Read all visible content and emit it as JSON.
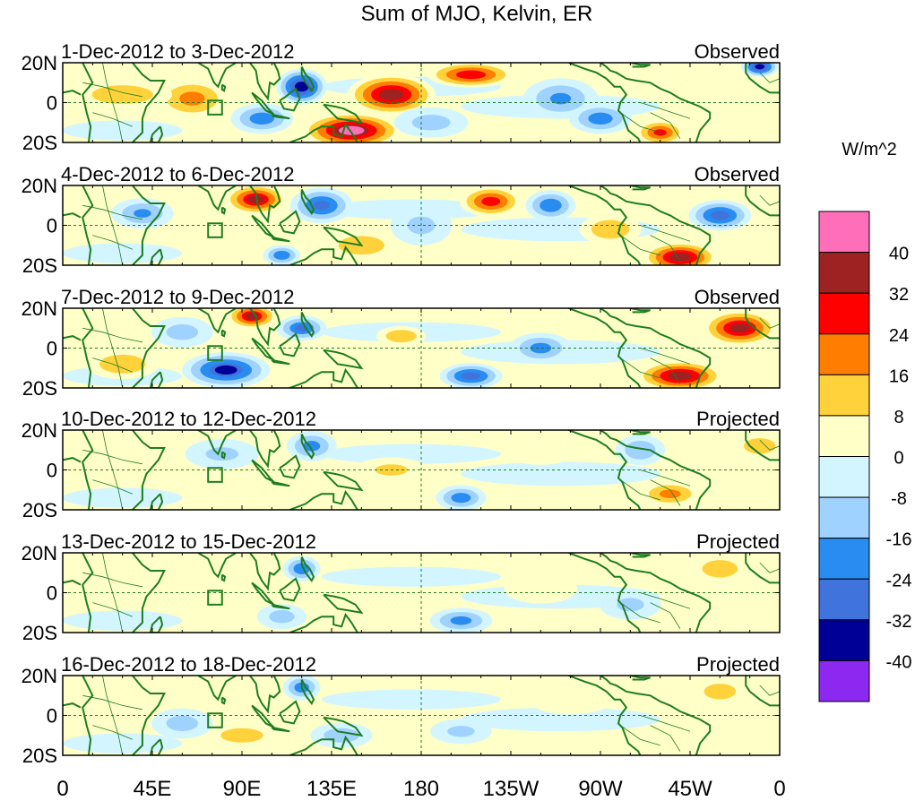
{
  "chart_data": {
    "type": "heatmap",
    "title": "Sum of MJO, Kelvin, ER",
    "units": "W/m^2",
    "x_ticks": [
      "0",
      "45E",
      "90E",
      "135E",
      "180",
      "135W",
      "90W",
      "45W",
      "0"
    ],
    "y_ticks": [
      "20N",
      "0",
      "20S"
    ],
    "xlim": [
      0,
      360
    ],
    "ylim": [
      -20,
      20
    ],
    "colorbar": {
      "labels": [
        "40",
        "32",
        "24",
        "16",
        "8",
        "0",
        "-8",
        "-16",
        "-24",
        "-32",
        "-40"
      ],
      "colors": [
        "#ff6eb9",
        "#9e2222",
        "#ff0000",
        "#ff7d00",
        "#ffd23c",
        "#ffffc8",
        "#d2f5ff",
        "#a0d2ff",
        "#288cf0",
        "#4173dc",
        "#000096",
        "#8c28f0"
      ]
    },
    "panels": [
      {
        "period": "1-Dec-2012 to 3-Dec-2012",
        "status": "Observed",
        "blobs": [
          {
            "lon": 165,
            "lat": 4,
            "rlon": 14,
            "rlat": 8,
            "v": 38
          },
          {
            "lon": 145,
            "lat": -14,
            "rlon": 16,
            "rlat": 7,
            "v": 42
          },
          {
            "lon": 120,
            "lat": 8,
            "rlon": 8,
            "rlat": 7,
            "v": -38
          },
          {
            "lon": 205,
            "lat": 14,
            "rlon": 14,
            "rlat": 5,
            "v": 30
          },
          {
            "lon": 100,
            "lat": -8,
            "rlon": 10,
            "rlat": 6,
            "v": -20
          },
          {
            "lon": 65,
            "lat": 2,
            "rlon": 12,
            "rlat": 8,
            "v": 18
          },
          {
            "lon": 30,
            "lat": 4,
            "rlon": 16,
            "rlat": 6,
            "v": 14
          },
          {
            "lon": 250,
            "lat": 2,
            "rlon": 12,
            "rlat": 8,
            "v": -16
          },
          {
            "lon": 300,
            "lat": -15,
            "rlon": 8,
            "rlat": 5,
            "v": 26
          },
          {
            "lon": 350,
            "lat": 18,
            "rlon": 6,
            "rlat": 4,
            "v": -36
          },
          {
            "lon": 270,
            "lat": -8,
            "rlon": 10,
            "rlat": 6,
            "v": -20
          },
          {
            "lon": 185,
            "lat": -10,
            "rlon": 12,
            "rlat": 6,
            "v": -10
          }
        ]
      },
      {
        "period": "4-Dec-2012 to 6-Dec-2012",
        "status": "Observed",
        "blobs": [
          {
            "lon": 97,
            "lat": 13,
            "rlon": 10,
            "rlat": 6,
            "v": 34
          },
          {
            "lon": 130,
            "lat": 10,
            "rlon": 10,
            "rlat": 7,
            "v": -26
          },
          {
            "lon": 110,
            "lat": -15,
            "rlon": 6,
            "rlat": 4,
            "v": -22
          },
          {
            "lon": 215,
            "lat": 12,
            "rlon": 10,
            "rlat": 6,
            "v": 28
          },
          {
            "lon": 245,
            "lat": 10,
            "rlon": 8,
            "rlat": 6,
            "v": -22
          },
          {
            "lon": 310,
            "lat": -16,
            "rlon": 12,
            "rlat": 6,
            "v": 38
          },
          {
            "lon": 330,
            "lat": 5,
            "rlon": 10,
            "rlat": 6,
            "v": -28
          },
          {
            "lon": 40,
            "lat": 6,
            "rlon": 10,
            "rlat": 6,
            "v": -16
          },
          {
            "lon": 150,
            "lat": -10,
            "rlon": 12,
            "rlat": 6,
            "v": 14
          },
          {
            "lon": 275,
            "lat": -2,
            "rlon": 10,
            "rlat": 6,
            "v": 14
          },
          {
            "lon": 180,
            "lat": 0,
            "rlon": 10,
            "rlat": 8,
            "v": -8
          }
        ]
      },
      {
        "period": "7-Dec-2012 to 9-Dec-2012",
        "status": "Observed",
        "blobs": [
          {
            "lon": 95,
            "lat": 16,
            "rlon": 8,
            "rlat": 5,
            "v": 34
          },
          {
            "lon": 82,
            "lat": -11,
            "rlon": 14,
            "rlat": 7,
            "v": -32
          },
          {
            "lon": 120,
            "lat": 10,
            "rlon": 8,
            "rlat": 5,
            "v": -24
          },
          {
            "lon": 340,
            "lat": 10,
            "rlon": 12,
            "rlat": 7,
            "v": 36
          },
          {
            "lon": 310,
            "lat": -14,
            "rlon": 14,
            "rlat": 6,
            "v": 38
          },
          {
            "lon": 205,
            "lat": -14,
            "rlon": 10,
            "rlat": 5,
            "v": -28
          },
          {
            "lon": 170,
            "lat": 6,
            "rlon": 8,
            "rlat": 4,
            "v": 14
          },
          {
            "lon": 240,
            "lat": 0,
            "rlon": 10,
            "rlat": 6,
            "v": -18
          },
          {
            "lon": 30,
            "lat": -8,
            "rlon": 12,
            "rlat": 6,
            "v": 14
          },
          {
            "lon": 60,
            "lat": 8,
            "rlon": 10,
            "rlat": 6,
            "v": -10
          }
        ]
      },
      {
        "period": "10-Dec-2012 to 12-Dec-2012",
        "status": "Projected",
        "blobs": [
          {
            "lon": 125,
            "lat": 12,
            "rlon": 8,
            "rlat": 6,
            "v": -18
          },
          {
            "lon": 200,
            "lat": -14,
            "rlon": 8,
            "rlat": 5,
            "v": -20
          },
          {
            "lon": 305,
            "lat": -12,
            "rlon": 10,
            "rlat": 5,
            "v": 18
          },
          {
            "lon": 290,
            "lat": 10,
            "rlon": 8,
            "rlat": 6,
            "v": -14
          },
          {
            "lon": 165,
            "lat": 0,
            "rlon": 12,
            "rlat": 5,
            "v": 8
          },
          {
            "lon": 80,
            "lat": 8,
            "rlon": 12,
            "rlat": 6,
            "v": -8
          },
          {
            "lon": 350,
            "lat": 12,
            "rlon": 10,
            "rlat": 6,
            "v": 10
          },
          {
            "lon": 240,
            "lat": 10,
            "rlon": 12,
            "rlat": 6,
            "v": 6
          }
        ]
      },
      {
        "period": "13-Dec-2012 to 15-Dec-2012",
        "status": "Projected",
        "blobs": [
          {
            "lon": 120,
            "lat": 12,
            "rlon": 6,
            "rlat": 5,
            "v": -22
          },
          {
            "lon": 200,
            "lat": -14,
            "rlon": 10,
            "rlat": 5,
            "v": -18
          },
          {
            "lon": 330,
            "lat": 12,
            "rlon": 10,
            "rlat": 6,
            "v": 12
          },
          {
            "lon": 110,
            "lat": -12,
            "rlon": 8,
            "rlat": 5,
            "v": -10
          },
          {
            "lon": 60,
            "lat": 0,
            "rlon": 14,
            "rlat": 8,
            "v": 4
          },
          {
            "lon": 240,
            "lat": 2,
            "rlon": 12,
            "rlat": 6,
            "v": 6
          },
          {
            "lon": 285,
            "lat": -6,
            "rlon": 10,
            "rlat": 6,
            "v": -8
          }
        ]
      },
      {
        "period": "16-Dec-2012 to 18-Dec-2012",
        "status": "Projected",
        "blobs": [
          {
            "lon": 120,
            "lat": 14,
            "rlon": 6,
            "rlat": 5,
            "v": -20
          },
          {
            "lon": 90,
            "lat": -10,
            "rlon": 12,
            "rlat": 5,
            "v": 12
          },
          {
            "lon": 60,
            "lat": -4,
            "rlon": 10,
            "rlat": 6,
            "v": -10
          },
          {
            "lon": 330,
            "lat": 12,
            "rlon": 10,
            "rlat": 6,
            "v": 10
          },
          {
            "lon": 140,
            "lat": -10,
            "rlon": 10,
            "rlat": 5,
            "v": -12
          },
          {
            "lon": 200,
            "lat": -8,
            "rlon": 10,
            "rlat": 5,
            "v": -8
          },
          {
            "lon": 255,
            "lat": 8,
            "rlon": 14,
            "rlat": 6,
            "v": 6
          }
        ]
      }
    ]
  }
}
